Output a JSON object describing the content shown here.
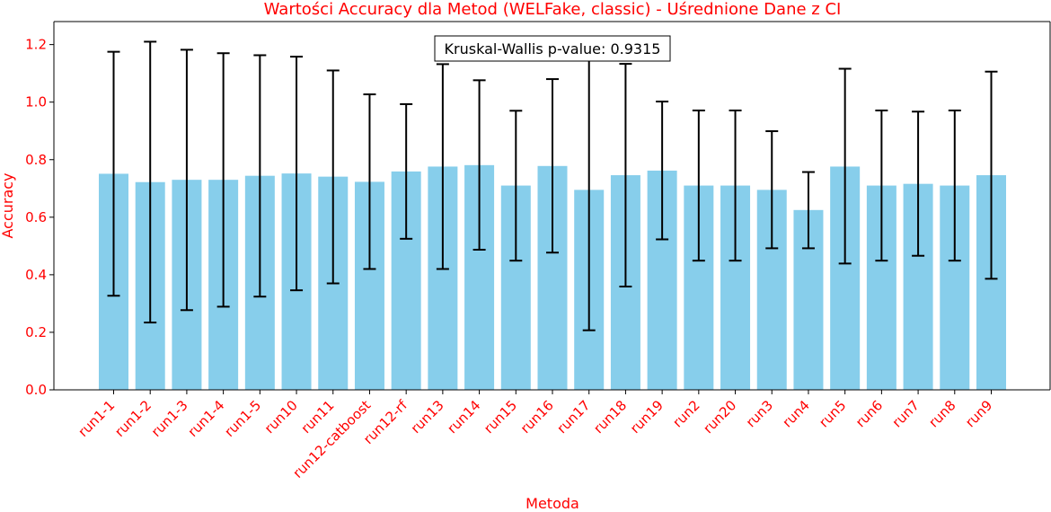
{
  "chart_data": {
    "type": "bar",
    "title": "Wartości Accuracy dla Metod (WELFake, classic) - Uśrednione Dane z CI",
    "xlabel": "Metoda",
    "ylabel": "Accuracy",
    "ylim": [
      0,
      1.28
    ],
    "yticks": [
      0.0,
      0.2,
      0.4,
      0.6,
      0.8,
      1.0,
      1.2
    ],
    "ytick_labels": [
      "0.0",
      "0.2",
      "0.4",
      "0.6",
      "0.8",
      "1.0",
      "1.2"
    ],
    "annotation": "Kruskal-Wallis p-value: 0.9315",
    "grid": false,
    "bar_color": "#87ceeb",
    "errorbar_color": "#000000",
    "label_color": "#ff0000",
    "categories": [
      "run1-1",
      "run1-2",
      "run1-3",
      "run1-4",
      "run1-5",
      "run10",
      "run11",
      "run12-catboost",
      "run12-rf",
      "run13",
      "run14",
      "run15",
      "run16",
      "run17",
      "run18",
      "run19",
      "run2",
      "run20",
      "run3",
      "run4",
      "run5",
      "run6",
      "run7",
      "run8",
      "run9"
    ],
    "values": [
      0.751,
      0.722,
      0.73,
      0.73,
      0.744,
      0.752,
      0.741,
      0.723,
      0.759,
      0.776,
      0.781,
      0.71,
      0.778,
      0.695,
      0.746,
      0.762,
      0.71,
      0.71,
      0.695,
      0.625,
      0.776,
      0.71,
      0.716,
      0.71,
      0.746
    ],
    "ci_lower": [
      0.327,
      0.234,
      0.277,
      0.289,
      0.324,
      0.346,
      0.37,
      0.42,
      0.525,
      0.42,
      0.487,
      0.449,
      0.477,
      0.207,
      0.359,
      0.523,
      0.449,
      0.449,
      0.492,
      0.492,
      0.439,
      0.449,
      0.466,
      0.449,
      0.386
    ],
    "ci_upper": [
      1.175,
      1.21,
      1.182,
      1.17,
      1.163,
      1.158,
      1.11,
      1.027,
      0.993,
      1.132,
      1.076,
      0.97,
      1.08,
      1.18,
      1.133,
      1.002,
      0.971,
      0.971,
      0.899,
      0.757,
      1.116,
      0.971,
      0.967,
      0.971,
      1.106
    ]
  }
}
